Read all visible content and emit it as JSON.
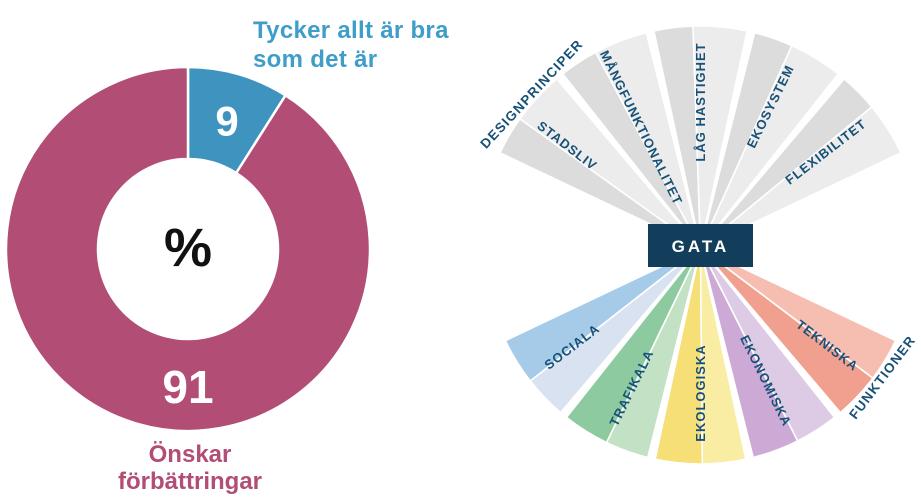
{
  "donut": {
    "title_line1": "Tycker allt är bra",
    "title_line2": "som det är",
    "title_color": "#3f9dc9",
    "center_symbol": "%",
    "slices": [
      {
        "label": "Tycker allt är bra som det är",
        "value": 9,
        "color": "#3e93bf"
      },
      {
        "label": "Önskar förbättringar",
        "value": 91,
        "color": "#b24d76"
      }
    ],
    "footer_line1": "Önskar",
    "footer_line2": "förbättringar",
    "footer_color": "#b24d76"
  },
  "fan": {
    "center_label": "GATA",
    "center_box_color": "#133e5b",
    "label_color": "#175177",
    "top": {
      "category": "DESIGNPRINCIPER",
      "segments": [
        {
          "label": "STADSLIV",
          "dark": "#dcdcdc",
          "light": "#ececec"
        },
        {
          "label": "MÅNGFUNKTIONALITET",
          "dark": "#dcdcdc",
          "light": "#ececec"
        },
        {
          "label": "LÅG HASTIGHET",
          "dark": "#dcdcdc",
          "light": "#ececec"
        },
        {
          "label": "EKOSYSTEM",
          "dark": "#dcdcdc",
          "light": "#ececec"
        },
        {
          "label": "FLEXIBILITET",
          "dark": "#dcdcdc",
          "light": "#ececec"
        }
      ]
    },
    "bottom": {
      "category": "FUNKTIONER",
      "segments": [
        {
          "label": "SOCIALA",
          "dark": "#a5cbe9",
          "light": "#d9e2f1"
        },
        {
          "label": "TRAFIKALA",
          "dark": "#8ecaa0",
          "light": "#c3e1c4"
        },
        {
          "label": "EKOLOGISKA",
          "dark": "#f5df76",
          "light": "#f9eca3"
        },
        {
          "label": "EKONOMISKA",
          "dark": "#ccaad5",
          "light": "#ddcbe5"
        },
        {
          "label": "TEKNISKA",
          "dark": "#f1a090",
          "light": "#f6beb1"
        }
      ]
    }
  },
  "chart_data": [
    {
      "type": "pie",
      "donut": true,
      "title": "Andel som önskar förbättringar",
      "labels": [
        "Tycker allt är bra som det är",
        "Önskar förbättringar"
      ],
      "values": [
        9,
        91
      ],
      "unit": "%",
      "colors": [
        "#3e93bf",
        "#b24d76"
      ],
      "center_text": "%",
      "start_angle": "top",
      "direction": "clockwise",
      "legend_position": "none"
    },
    {
      "type": "table",
      "title": "GATA",
      "groups": [
        {
          "name": "DESIGNPRINCIPER",
          "items": [
            "STADSLIV",
            "MÅNGFUNKTIONALITET",
            "LÅG HASTIGHET",
            "EKOSYSTEM",
            "FLEXIBILITET"
          ]
        },
        {
          "name": "FUNKTIONER",
          "items": [
            "SOCIALA",
            "TRAFIKALA",
            "EKOLOGISKA",
            "EKONOMISKA",
            "TEKNISKA"
          ]
        }
      ]
    }
  ]
}
